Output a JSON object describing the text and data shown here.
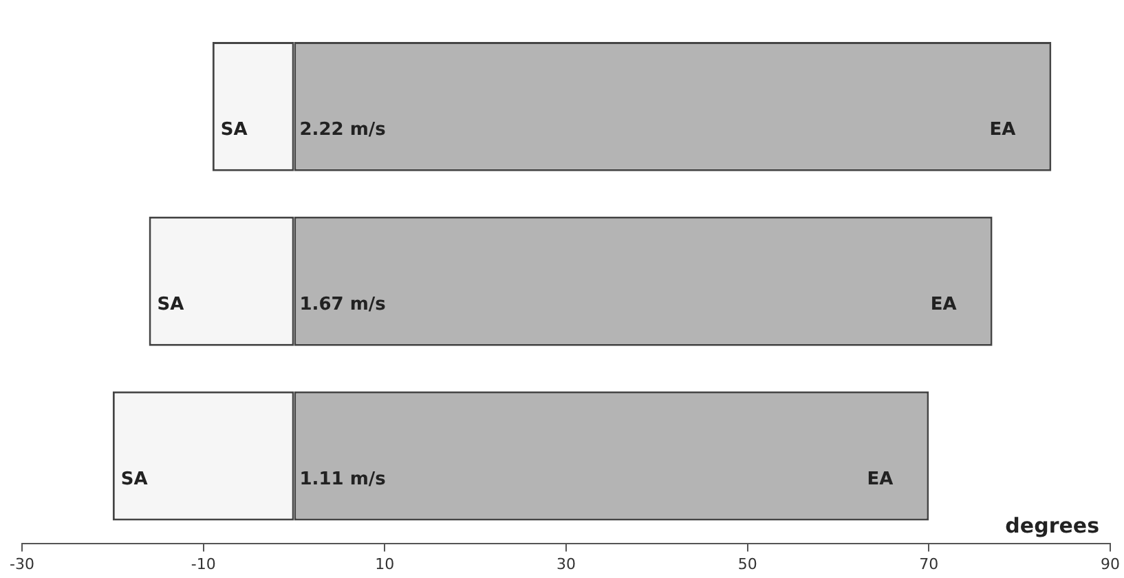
{
  "chart_data": {
    "type": "bar",
    "orientation": "horizontal",
    "stacked": true,
    "xlabel": "degrees",
    "categories": [
      "2.22 m/s",
      "1.67 m/s",
      "1.11 m/s"
    ],
    "series": [
      {
        "name": "SA",
        "color": "#f6f6f6",
        "values": [
          -9,
          -16,
          -20
        ]
      },
      {
        "name": "EA",
        "color": "#b4b4b4",
        "values": [
          83.5,
          77,
          70
        ]
      }
    ],
    "xlim": [
      -30,
      90
    ],
    "xticks": [
      -30,
      -10,
      10,
      30,
      50,
      70,
      90
    ],
    "grid": false,
    "legend": false,
    "tick_labels": "x"
  }
}
